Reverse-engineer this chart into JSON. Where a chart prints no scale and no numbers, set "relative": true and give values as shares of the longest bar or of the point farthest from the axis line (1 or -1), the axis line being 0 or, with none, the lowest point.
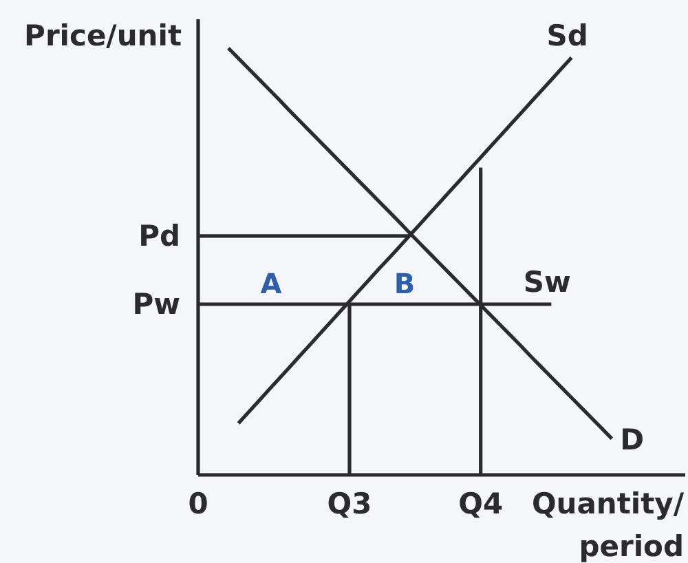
{
  "chart_data": {
    "type": "line",
    "relative": true,
    "xlabel": "Quantity/ period",
    "ylabel": "Price/unit",
    "categories": [
      "0",
      null,
      null,
      null,
      null,
      null,
      null,
      null,
      null,
      null,
      null,
      null,
      null,
      null,
      null,
      "Q3",
      null,
      null,
      null,
      null,
      null,
      null,
      null,
      null,
      null,
      null,
      null,
      null,
      "Q4",
      null,
      null,
      null,
      null,
      null,
      null,
      null,
      null,
      null,
      null,
      null,
      null,
      null,
      null,
      null,
      null,
      null,
      null,
      null,
      null
    ],
    "series": [
      {
        "name": "D",
        "color": "#2b2b2e",
        "values": [
          null,
          null,
          null,
          1,
          0.976,
          0.952,
          0.928,
          0.904,
          0.88,
          0.855,
          0.831,
          0.807,
          0.783,
          0.759,
          0.735,
          0.711,
          0.687,
          0.663,
          0.639,
          0.615,
          0.591,
          0.566,
          0.542,
          0.518,
          0.494,
          0.47,
          0.446,
          0.422,
          0.398,
          0.374,
          0.35,
          0.326,
          0.302,
          0.277,
          0.253,
          0.229,
          0.205,
          0.181,
          0.157,
          0.133,
          0.109,
          0.085,
          null,
          null,
          null,
          null,
          null,
          null,
          null
        ]
      },
      {
        "name": "Sd",
        "color": "#2b2b2e",
        "values": [
          null,
          null,
          null,
          null,
          0.121,
          0.147,
          0.173,
          0.199,
          0.225,
          0.251,
          0.277,
          0.303,
          0.329,
          0.355,
          0.381,
          0.407,
          0.433,
          0.459,
          0.485,
          0.51,
          0.536,
          0.562,
          0.588,
          0.614,
          0.64,
          0.666,
          0.692,
          0.718,
          0.744,
          0.77,
          0.796,
          0.822,
          0.848,
          0.874,
          0.9,
          0.926,
          0.952,
          0.978,
          null,
          null,
          null,
          null,
          null,
          null,
          null,
          null,
          null,
          null,
          null
        ]
      },
      {
        "name": "Sw",
        "color": "#2b2b2e",
        "values": [
          0.4,
          0.4,
          0.4,
          0.4,
          0.4,
          0.4,
          0.4,
          0.4,
          0.4,
          0.4,
          0.4,
          0.4,
          0.4,
          0.4,
          0.4,
          0.4,
          0.4,
          0.4,
          0.4,
          0.4,
          0.4,
          0.4,
          0.4,
          0.4,
          0.4,
          0.4,
          0.4,
          0.4,
          0.4,
          0.4,
          0.4,
          0.4,
          0.4,
          0.4,
          0.4,
          0.4,
          null,
          null,
          null,
          null,
          null,
          null,
          null,
          null,
          null,
          null,
          null,
          null,
          null
        ]
      },
      {
        "color": "#2b2b2e",
        "values": [
          0.56,
          0.56,
          0.56,
          0.56,
          0.56,
          0.56,
          0.56,
          0.56,
          0.56,
          0.56,
          0.56,
          0.56,
          0.56,
          0.56,
          0.56,
          0.56,
          0.56,
          0.56,
          0.56,
          0.56,
          0.56,
          0.56,
          null,
          null,
          null,
          null,
          null,
          null,
          null,
          null,
          null,
          null,
          null,
          null,
          null,
          null,
          null,
          null,
          null,
          null,
          null,
          null,
          null,
          null,
          null,
          null,
          null,
          null,
          null
        ]
      },
      {
        "color": "#2b2b2e",
        "x": [
          "Q3",
          "Q3"
        ],
        "values": [
          0,
          0.4
        ]
      },
      {
        "color": "#2b2b2e",
        "x": [
          "Q4",
          "Q4"
        ],
        "values": [
          0,
          0.72
        ]
      }
    ],
    "annotations": [
      "A",
      "B",
      {
        "text": "Pd",
        "x": "0",
        "y": 0.56
      },
      {
        "text": "Pw",
        "x": "0",
        "y": 0.4
      }
    ],
    "line_style": "solid"
  }
}
